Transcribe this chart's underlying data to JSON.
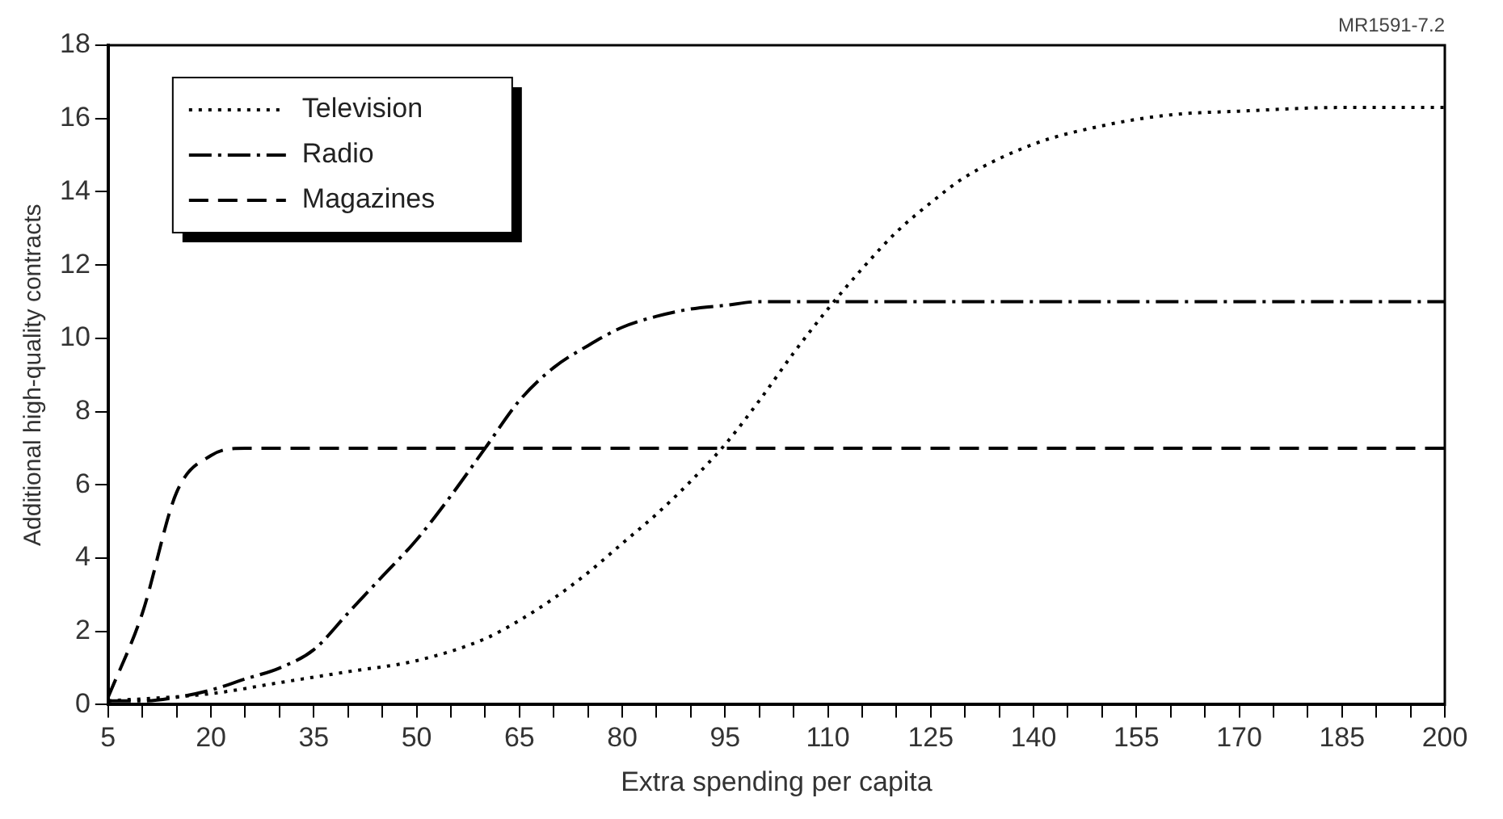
{
  "chart_data": {
    "type": "line",
    "xlabel": "Extra spending per capita",
    "ylabel": "Additional high-quality contracts",
    "annotations": [
      "MR1591-7.2"
    ],
    "xlim": [
      5,
      200
    ],
    "ylim": [
      0,
      18
    ],
    "xticks": [
      5,
      {
        "value": 10,
        "label": null
      },
      {
        "value": 15,
        "label": null
      },
      20,
      {
        "value": 25,
        "label": null
      },
      {
        "value": 30,
        "label": null
      },
      35,
      {
        "value": 40,
        "label": null
      },
      {
        "value": 45,
        "label": null
      },
      50,
      {
        "value": 55,
        "label": null
      },
      {
        "value": 60,
        "label": null
      },
      65,
      {
        "value": 70,
        "label": null
      },
      {
        "value": 75,
        "label": null
      },
      80,
      {
        "value": 85,
        "label": null
      },
      {
        "value": 90,
        "label": null
      },
      95,
      {
        "value": 100,
        "label": null
      },
      {
        "value": 105,
        "label": null
      },
      110,
      {
        "value": 115,
        "label": null
      },
      {
        "value": 120,
        "label": null
      },
      125,
      {
        "value": 130,
        "label": null
      },
      {
        "value": 135,
        "label": null
      },
      140,
      {
        "value": 145,
        "label": null
      },
      {
        "value": 150,
        "label": null
      },
      155,
      {
        "value": 160,
        "label": null
      },
      {
        "value": 165,
        "label": null
      },
      170,
      {
        "value": 175,
        "label": null
      },
      {
        "value": 180,
        "label": null
      },
      185,
      {
        "value": 190,
        "label": null
      },
      {
        "value": 195,
        "label": null
      },
      200
    ],
    "yticks": [
      0,
      2,
      4,
      6,
      8,
      10,
      12,
      14,
      16,
      18
    ],
    "grid": false,
    "legend": "top left",
    "marker": "none",
    "series": [
      {
        "name": "Television",
        "color": "#000000",
        "line_style": "dotted",
        "x": [
          5,
          20,
          30,
          40,
          50,
          60,
          65,
          70,
          75,
          80,
          85,
          90,
          95,
          100,
          105,
          110,
          115,
          120,
          125,
          130,
          140,
          150,
          160,
          170,
          185,
          200
        ],
        "values": [
          0.1,
          0.3,
          0.6,
          0.9,
          1.2,
          1.8,
          2.3,
          2.9,
          3.6,
          4.4,
          5.2,
          6.1,
          7.1,
          8.3,
          9.6,
          10.8,
          11.9,
          12.9,
          13.7,
          14.4,
          15.3,
          15.8,
          16.1,
          16.2,
          16.3,
          16.3
        ]
      },
      {
        "name": "Radio",
        "color": "#000000",
        "line_style": "dashdot",
        "x": [
          5,
          10,
          15,
          20,
          25,
          30,
          35,
          40,
          45,
          50,
          55,
          60,
          65,
          70,
          75,
          80,
          85,
          90,
          95,
          100,
          110,
          200
        ],
        "values": [
          0.1,
          0.1,
          0.2,
          0.4,
          0.7,
          1.0,
          1.5,
          2.5,
          3.5,
          4.5,
          5.7,
          7.0,
          8.3,
          9.2,
          9.8,
          10.3,
          10.6,
          10.8,
          10.9,
          11.0,
          11.0,
          11.0
        ]
      },
      {
        "name": "Magazines",
        "color": "#000000",
        "line_style": "dashed",
        "x": [
          5,
          10,
          15,
          20,
          25,
          30,
          200
        ],
        "values": [
          0.2,
          2.5,
          5.8,
          6.8,
          7.0,
          7.0,
          7.0
        ]
      }
    ]
  }
}
